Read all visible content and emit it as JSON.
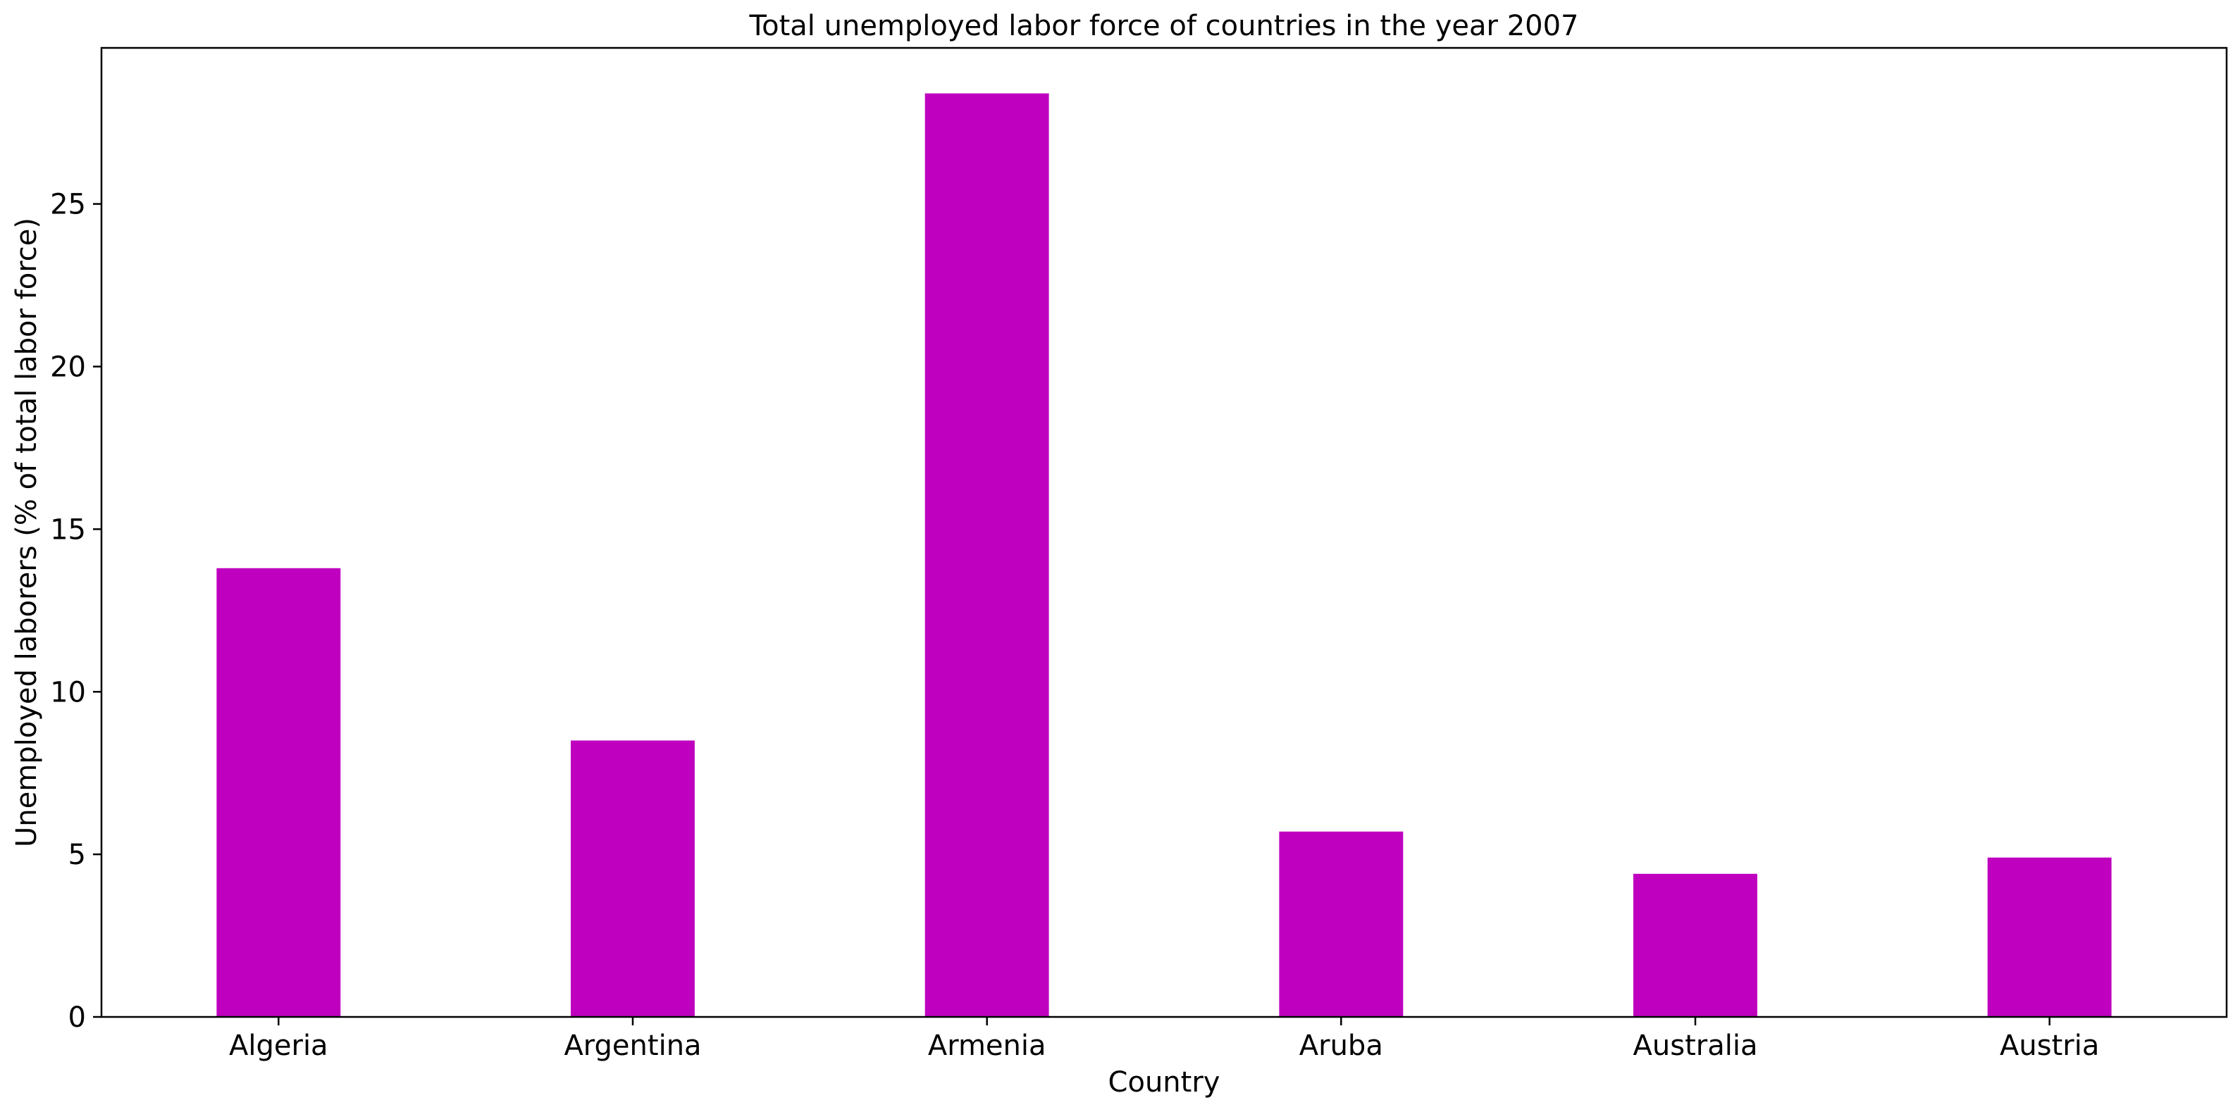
{
  "chart_data": {
    "type": "bar",
    "title": "Total unemployed labor force of countries in the year 2007",
    "xlabel": "Country",
    "ylabel": "Unemployed laborers (% of total labor force)",
    "categories": [
      "Algeria",
      "Argentina",
      "Armenia",
      "Aruba",
      "Australia",
      "Austria"
    ],
    "values": [
      13.8,
      8.5,
      28.4,
      5.7,
      4.4,
      4.9
    ],
    "ylim": [
      0,
      29.8
    ],
    "yticks": [
      0,
      5,
      10,
      15,
      20,
      25
    ],
    "ytick_labels": [
      "0",
      "5",
      "10",
      "15",
      "20",
      "25"
    ],
    "grid": false,
    "legend": "none",
    "bar_color": "#bf00bf"
  }
}
